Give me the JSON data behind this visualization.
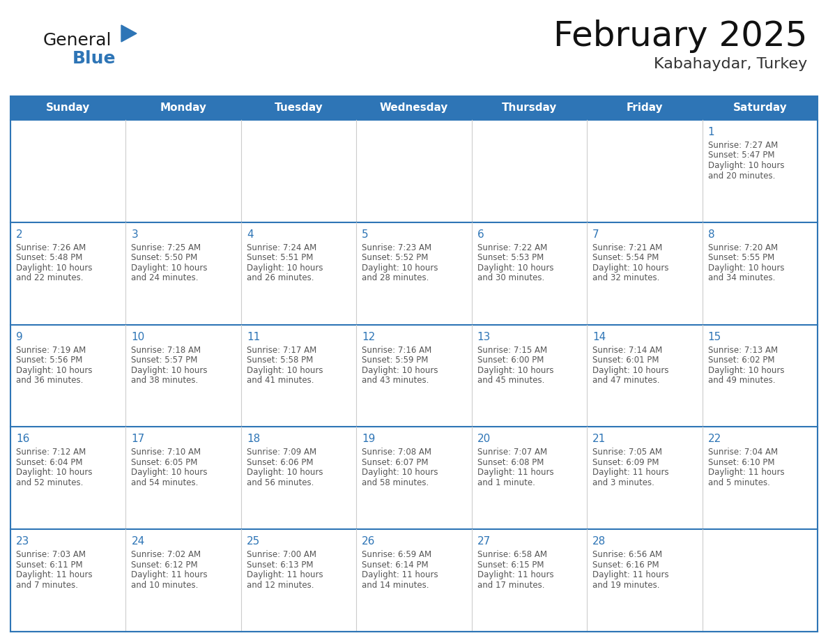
{
  "title": "February 2025",
  "subtitle": "Kabahaydar, Turkey",
  "header_bg": "#2E75B6",
  "header_text_color": "#FFFFFF",
  "cell_border_color": "#2E75B6",
  "day_number_color": "#2E75B6",
  "info_text_color": "#555555",
  "bg_color": "#FFFFFF",
  "days_of_week": [
    "Sunday",
    "Monday",
    "Tuesday",
    "Wednesday",
    "Thursday",
    "Friday",
    "Saturday"
  ],
  "calendar_data": [
    [
      null,
      null,
      null,
      null,
      null,
      null,
      {
        "day": "1",
        "sunrise": "7:27 AM",
        "sunset": "5:47 PM",
        "daylight_l1": "10 hours",
        "daylight_l2": "and 20 minutes."
      }
    ],
    [
      {
        "day": "2",
        "sunrise": "7:26 AM",
        "sunset": "5:48 PM",
        "daylight_l1": "10 hours",
        "daylight_l2": "and 22 minutes."
      },
      {
        "day": "3",
        "sunrise": "7:25 AM",
        "sunset": "5:50 PM",
        "daylight_l1": "10 hours",
        "daylight_l2": "and 24 minutes."
      },
      {
        "day": "4",
        "sunrise": "7:24 AM",
        "sunset": "5:51 PM",
        "daylight_l1": "10 hours",
        "daylight_l2": "and 26 minutes."
      },
      {
        "day": "5",
        "sunrise": "7:23 AM",
        "sunset": "5:52 PM",
        "daylight_l1": "10 hours",
        "daylight_l2": "and 28 minutes."
      },
      {
        "day": "6",
        "sunrise": "7:22 AM",
        "sunset": "5:53 PM",
        "daylight_l1": "10 hours",
        "daylight_l2": "and 30 minutes."
      },
      {
        "day": "7",
        "sunrise": "7:21 AM",
        "sunset": "5:54 PM",
        "daylight_l1": "10 hours",
        "daylight_l2": "and 32 minutes."
      },
      {
        "day": "8",
        "sunrise": "7:20 AM",
        "sunset": "5:55 PM",
        "daylight_l1": "10 hours",
        "daylight_l2": "and 34 minutes."
      }
    ],
    [
      {
        "day": "9",
        "sunrise": "7:19 AM",
        "sunset": "5:56 PM",
        "daylight_l1": "10 hours",
        "daylight_l2": "and 36 minutes."
      },
      {
        "day": "10",
        "sunrise": "7:18 AM",
        "sunset": "5:57 PM",
        "daylight_l1": "10 hours",
        "daylight_l2": "and 38 minutes."
      },
      {
        "day": "11",
        "sunrise": "7:17 AM",
        "sunset": "5:58 PM",
        "daylight_l1": "10 hours",
        "daylight_l2": "and 41 minutes."
      },
      {
        "day": "12",
        "sunrise": "7:16 AM",
        "sunset": "5:59 PM",
        "daylight_l1": "10 hours",
        "daylight_l2": "and 43 minutes."
      },
      {
        "day": "13",
        "sunrise": "7:15 AM",
        "sunset": "6:00 PM",
        "daylight_l1": "10 hours",
        "daylight_l2": "and 45 minutes."
      },
      {
        "day": "14",
        "sunrise": "7:14 AM",
        "sunset": "6:01 PM",
        "daylight_l1": "10 hours",
        "daylight_l2": "and 47 minutes."
      },
      {
        "day": "15",
        "sunrise": "7:13 AM",
        "sunset": "6:02 PM",
        "daylight_l1": "10 hours",
        "daylight_l2": "and 49 minutes."
      }
    ],
    [
      {
        "day": "16",
        "sunrise": "7:12 AM",
        "sunset": "6:04 PM",
        "daylight_l1": "10 hours",
        "daylight_l2": "and 52 minutes."
      },
      {
        "day": "17",
        "sunrise": "7:10 AM",
        "sunset": "6:05 PM",
        "daylight_l1": "10 hours",
        "daylight_l2": "and 54 minutes."
      },
      {
        "day": "18",
        "sunrise": "7:09 AM",
        "sunset": "6:06 PM",
        "daylight_l1": "10 hours",
        "daylight_l2": "and 56 minutes."
      },
      {
        "day": "19",
        "sunrise": "7:08 AM",
        "sunset": "6:07 PM",
        "daylight_l1": "10 hours",
        "daylight_l2": "and 58 minutes."
      },
      {
        "day": "20",
        "sunrise": "7:07 AM",
        "sunset": "6:08 PM",
        "daylight_l1": "11 hours",
        "daylight_l2": "and 1 minute."
      },
      {
        "day": "21",
        "sunrise": "7:05 AM",
        "sunset": "6:09 PM",
        "daylight_l1": "11 hours",
        "daylight_l2": "and 3 minutes."
      },
      {
        "day": "22",
        "sunrise": "7:04 AM",
        "sunset": "6:10 PM",
        "daylight_l1": "11 hours",
        "daylight_l2": "and 5 minutes."
      }
    ],
    [
      {
        "day": "23",
        "sunrise": "7:03 AM",
        "sunset": "6:11 PM",
        "daylight_l1": "11 hours",
        "daylight_l2": "and 7 minutes."
      },
      {
        "day": "24",
        "sunrise": "7:02 AM",
        "sunset": "6:12 PM",
        "daylight_l1": "11 hours",
        "daylight_l2": "and 10 minutes."
      },
      {
        "day": "25",
        "sunrise": "7:00 AM",
        "sunset": "6:13 PM",
        "daylight_l1": "11 hours",
        "daylight_l2": "and 12 minutes."
      },
      {
        "day": "26",
        "sunrise": "6:59 AM",
        "sunset": "6:14 PM",
        "daylight_l1": "11 hours",
        "daylight_l2": "and 14 minutes."
      },
      {
        "day": "27",
        "sunrise": "6:58 AM",
        "sunset": "6:15 PM",
        "daylight_l1": "11 hours",
        "daylight_l2": "and 17 minutes."
      },
      {
        "day": "28",
        "sunrise": "6:56 AM",
        "sunset": "6:16 PM",
        "daylight_l1": "11 hours",
        "daylight_l2": "and 19 minutes."
      },
      null
    ]
  ],
  "logo_general_color": "#1a1a1a",
  "logo_blue_color": "#2E75B6",
  "logo_triangle_color": "#2E75B6",
  "title_fontsize": 36,
  "subtitle_fontsize": 16,
  "header_fontsize": 11,
  "day_num_fontsize": 11,
  "info_fontsize": 8.5
}
